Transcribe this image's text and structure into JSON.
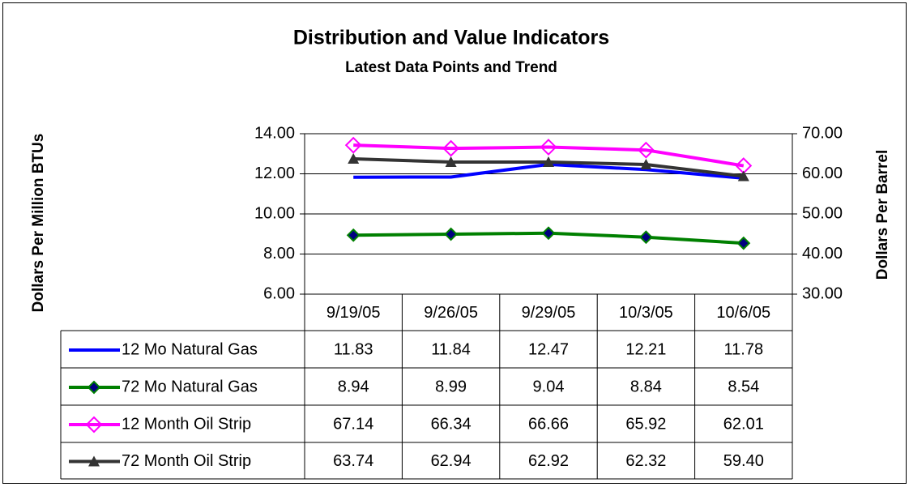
{
  "chart_data": {
    "type": "line",
    "title": "Distribution and Value Indicators",
    "subtitle": "Latest Data Points and Trend",
    "y_label": "Dollars Per Million BTUs",
    "y2_label": "Dollars Per Barrel",
    "categories": [
      "9/19/05",
      "9/26/05",
      "9/29/05",
      "10/3/05",
      "10/6/05"
    ],
    "ylim": [
      6,
      14
    ],
    "yticks": [
      {
        "value": 6,
        "label": "6.00"
      },
      {
        "value": 8,
        "label": "8.00"
      },
      {
        "value": 10,
        "label": "10.00"
      },
      {
        "value": 12,
        "label": "12.00"
      },
      {
        "value": 14,
        "label": "14.00"
      }
    ],
    "y2lim": [
      30,
      70
    ],
    "y2ticks": [
      {
        "value": 30,
        "label": "30.00"
      },
      {
        "value": 40,
        "label": "40.00"
      },
      {
        "value": 50,
        "label": "50.00"
      },
      {
        "value": 60,
        "label": "60.00"
      },
      {
        "value": 70,
        "label": "70.00"
      }
    ],
    "grid": true,
    "series": [
      {
        "name": "12 Mo Natural Gas",
        "color": "#0000ff",
        "marker": "none",
        "values": [
          11.83,
          11.84,
          12.47,
          12.21,
          11.78
        ],
        "value_labels": [
          "11.83",
          "11.84",
          "12.47",
          "12.21",
          "11.78"
        ]
      },
      {
        "name": "72 Mo Natural Gas",
        "color": "#008000",
        "marker": "diamond",
        "values": [
          8.94,
          8.99,
          9.04,
          8.84,
          8.54
        ],
        "value_labels": [
          "8.94",
          "8.99",
          "9.04",
          "8.84",
          "8.54"
        ]
      },
      {
        "name": "12 Month Oil Strip",
        "color": "#ff00ff",
        "marker": "open-diamond",
        "axis": "y2",
        "values": [
          67.14,
          66.34,
          66.66,
          65.92,
          62.01
        ],
        "value_labels": [
          "67.14",
          "66.34",
          "66.66",
          "65.92",
          "62.01"
        ]
      },
      {
        "name": "72 Month Oil Strip",
        "color": "#333333",
        "marker": "triangle",
        "axis": "y2",
        "values": [
          63.74,
          62.94,
          62.92,
          62.32,
          59.4
        ],
        "value_labels": [
          "63.74",
          "62.94",
          "62.92",
          "62.32",
          "59.40"
        ]
      }
    ]
  }
}
